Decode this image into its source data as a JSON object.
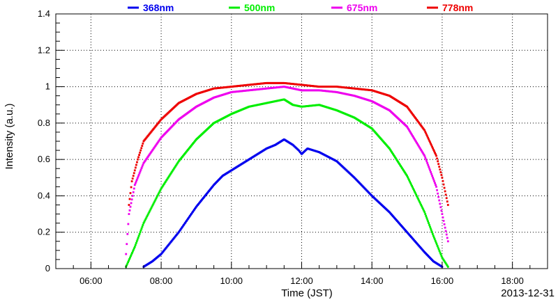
{
  "chart_data": {
    "type": "scatter",
    "title": "",
    "xlabel": "Time (JST)",
    "ylabel": "Intensity (a.u.)",
    "date_label": "2013-12-31",
    "xlim": [
      "05:00",
      "19:00"
    ],
    "ylim": [
      0,
      1.4
    ],
    "x_ticks": [
      "06:00",
      "08:00",
      "10:00",
      "12:00",
      "14:00",
      "16:00",
      "18:00"
    ],
    "y_ticks": [
      "0",
      "0.2",
      "0.4",
      "0.6",
      "0.8",
      "1",
      "1.2",
      "1.4"
    ],
    "grid": true,
    "legend_position": "top",
    "series": [
      {
        "name": "368nm",
        "color": "#0000ee",
        "x": [
          "07:30",
          "07:45",
          "08:00",
          "08:30",
          "09:00",
          "09:30",
          "09:45",
          "10:00",
          "10:30",
          "11:00",
          "11:15",
          "11:30",
          "11:45",
          "11:55",
          "12:00",
          "12:10",
          "12:30",
          "13:00",
          "13:30",
          "14:00",
          "14:30",
          "15:00",
          "15:30",
          "15:45",
          "16:00"
        ],
        "y": [
          0.01,
          0.04,
          0.08,
          0.2,
          0.34,
          0.46,
          0.51,
          0.54,
          0.6,
          0.66,
          0.68,
          0.71,
          0.68,
          0.65,
          0.63,
          0.66,
          0.64,
          0.59,
          0.5,
          0.4,
          0.31,
          0.2,
          0.09,
          0.04,
          0.01
        ]
      },
      {
        "name": "500nm",
        "color": "#00ee00",
        "x": [
          "07:00",
          "07:15",
          "07:30",
          "08:00",
          "08:30",
          "09:00",
          "09:30",
          "10:00",
          "10:30",
          "11:00",
          "11:30",
          "11:45",
          "12:00",
          "12:30",
          "13:00",
          "13:30",
          "14:00",
          "14:30",
          "15:00",
          "15:30",
          "15:45",
          "16:00",
          "16:10"
        ],
        "y": [
          0.01,
          0.12,
          0.25,
          0.44,
          0.59,
          0.71,
          0.8,
          0.85,
          0.89,
          0.91,
          0.93,
          0.9,
          0.89,
          0.9,
          0.87,
          0.83,
          0.77,
          0.66,
          0.51,
          0.31,
          0.18,
          0.06,
          0.01
        ]
      },
      {
        "name": "675nm",
        "color": "#ee00ee",
        "x": [
          "07:00",
          "07:05",
          "07:15",
          "07:30",
          "08:00",
          "08:30",
          "09:00",
          "09:30",
          "10:00",
          "10:30",
          "11:00",
          "11:30",
          "12:00",
          "12:30",
          "13:00",
          "13:30",
          "14:00",
          "14:30",
          "15:00",
          "15:30",
          "15:50",
          "16:00",
          "16:10"
        ],
        "y": [
          0.08,
          0.3,
          0.46,
          0.58,
          0.72,
          0.82,
          0.89,
          0.94,
          0.97,
          0.98,
          0.99,
          1.0,
          0.98,
          0.98,
          0.97,
          0.95,
          0.92,
          0.87,
          0.78,
          0.62,
          0.45,
          0.3,
          0.15
        ]
      },
      {
        "name": "778nm",
        "color": "#ee0000",
        "x": [
          "07:05",
          "07:10",
          "07:20",
          "07:30",
          "08:00",
          "08:30",
          "09:00",
          "09:30",
          "10:00",
          "10:30",
          "11:00",
          "11:30",
          "12:00",
          "12:30",
          "13:00",
          "13:30",
          "14:00",
          "14:30",
          "15:00",
          "15:30",
          "15:50",
          "16:00",
          "16:10"
        ],
        "y": [
          0.35,
          0.48,
          0.6,
          0.7,
          0.82,
          0.91,
          0.96,
          0.99,
          1.0,
          1.01,
          1.02,
          1.02,
          1.01,
          1.0,
          1.0,
          0.99,
          0.98,
          0.95,
          0.89,
          0.76,
          0.62,
          0.5,
          0.35
        ]
      }
    ]
  }
}
